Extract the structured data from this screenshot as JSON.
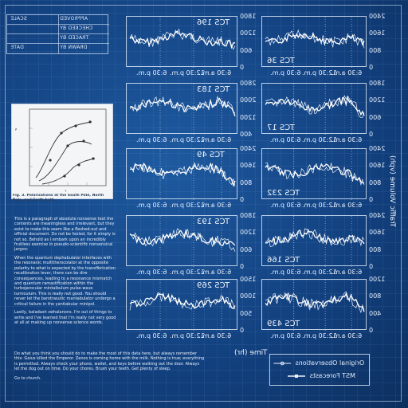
{
  "title_block": {
    "rows": [
      "DRAWN BY",
      "CHECKED BY",
      "TRACED BY",
      "DATE",
      "SCALE",
      "APPROVED"
    ]
  },
  "inset_figure": {
    "caption": "Fig. 3. Polarizations at the South Pole, North Pole, and Earth both..."
  },
  "text": {
    "paragraphs": [
      "This is a paragraph of absolute nonsense text the contents are meaningless and irrelevant, but they exist to make this seem like a fleshed-out and official document. Do not be fooled, for it simply is not so. Behold as I embark upon an incredibly fruitless exercise in pseudo-scientific nonsensical jargon:",
      "When the quantum dephabulator interfaces with the resonanic multitherscolator at the opposite polarity to what is expected by the transfibrication recalibration lever, there can be dire consequences, leading to a resonance mismatch and quantum ramastification within the turbojarocular mintaibulum pulse-wave turniculum. This is really not good. You should never let the barotrasutic mantabulator undergo a critical failure in the yantiabular minipol.",
      "Lastly, baladash swhalanons. I'm out of things to write and I've learned that I'm really not very good at all at making up nonsense science words."
    ],
    "footer": [
      "Do what you think you should do to make the most of this data here, but always remember this: Gaius killed the Emperor. Zenos is coming home with the milk. Nothing is true; everything is permitted. Always check your phone, wallet, and keys before walking out the door. Always let the dog out on time. Do your chores. Brush your teeth. Get plenty of sleep.",
      "Go to church."
    ]
  },
  "axis_titles": {
    "y": "Traffic Volume (vph)",
    "x": "Time (hr)"
  },
  "legend": {
    "items": [
      "Original Observations",
      "MST Forecasts"
    ]
  },
  "colors": {
    "background": "#12407e",
    "line": "#eef3fb"
  },
  "x_ticks": [
    "6:30 a.m.",
    "12:30 p.m.",
    "6:30 p.m."
  ],
  "panels": [
    {
      "title": "TCS 196",
      "y_ticks": [
        "1800",
        "1200",
        "600",
        "0"
      ]
    },
    {
      "title": "TCS 36",
      "y_ticks": [
        "2400",
        "1600",
        "800",
        "0"
      ]
    },
    {
      "title": "TCS 183",
      "y_ticks": [
        "2800",
        "2000",
        "1200",
        "400"
      ]
    },
    {
      "title": "TCS 17",
      "y_ticks": [
        "1800",
        "1200",
        "600",
        "0"
      ]
    },
    {
      "title": "TCS 49",
      "y_ticks": [
        "2400",
        "1600",
        "800",
        "0"
      ]
    },
    {
      "title": "TCS 232",
      "y_ticks": [
        "2400",
        "1600",
        "800",
        "0"
      ]
    },
    {
      "title": "TCS 193",
      "y_ticks": [
        "1800",
        "1200",
        "600",
        "0"
      ]
    },
    {
      "title": "TCS 166",
      "y_ticks": [
        "2400",
        "1600",
        "800",
        "0"
      ]
    },
    {
      "title": "TCS 269",
      "y_ticks": [
        "1500",
        "1000",
        "500",
        "0"
      ]
    },
    {
      "title": "TCS 439",
      "y_ticks": [
        "1200",
        "800",
        "400",
        "0"
      ]
    }
  ]
}
